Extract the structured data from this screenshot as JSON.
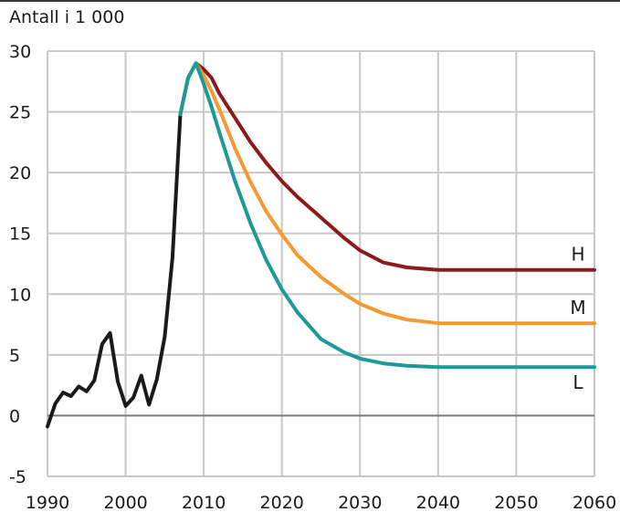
{
  "chart_data": {
    "type": "line",
    "title": "",
    "unit_label": "Antall i 1 000",
    "xlabel": "",
    "ylabel": "",
    "xlim": [
      1990,
      2060
    ],
    "ylim": [
      -5,
      30
    ],
    "x_ticks": [
      "1990",
      "2000",
      "2010",
      "2020",
      "2030",
      "2040",
      "2050",
      "2060"
    ],
    "y_ticks": [
      "30",
      "25",
      "20",
      "15",
      "10",
      "5",
      "0",
      "-5"
    ],
    "grid": true,
    "series": [
      {
        "color": "#1a1a1a",
        "points": [
          [
            1990,
            -0.9
          ],
          [
            1991,
            1.0
          ],
          [
            1992,
            1.9
          ],
          [
            1993,
            1.6
          ],
          [
            1994,
            2.4
          ],
          [
            1995,
            2.0
          ],
          [
            1996,
            2.9
          ],
          [
            1997,
            5.9
          ],
          [
            1998,
            6.8
          ],
          [
            1999,
            2.8
          ],
          [
            2000,
            0.8
          ],
          [
            2001,
            1.5
          ],
          [
            2002,
            3.3
          ],
          [
            2003,
            0.9
          ],
          [
            2004,
            3.0
          ],
          [
            2005,
            6.5
          ],
          [
            2006,
            13.0
          ],
          [
            2007,
            24.8
          ]
        ]
      },
      {
        "name": "H",
        "color": "#8b1a1a",
        "points": [
          [
            2007,
            24.8
          ],
          [
            2008,
            27.8
          ],
          [
            2009,
            29.0
          ],
          [
            2010,
            28.5
          ],
          [
            2011,
            27.8
          ],
          [
            2012,
            26.5
          ],
          [
            2014,
            24.5
          ],
          [
            2016,
            22.5
          ],
          [
            2018,
            20.8
          ],
          [
            2020,
            19.3
          ],
          [
            2022,
            18.0
          ],
          [
            2025,
            16.3
          ],
          [
            2028,
            14.6
          ],
          [
            2030,
            13.6
          ],
          [
            2033,
            12.6
          ],
          [
            2036,
            12.2
          ],
          [
            2040,
            12.0
          ],
          [
            2050,
            12.0
          ],
          [
            2060,
            12.0
          ]
        ]
      },
      {
        "name": "M",
        "color": "#f59a32",
        "points": [
          [
            2007,
            24.8
          ],
          [
            2008,
            27.8
          ],
          [
            2009,
            29.0
          ],
          [
            2010,
            28.0
          ],
          [
            2011,
            26.7
          ],
          [
            2012,
            25.2
          ],
          [
            2014,
            22.0
          ],
          [
            2016,
            19.2
          ],
          [
            2018,
            16.8
          ],
          [
            2020,
            14.9
          ],
          [
            2022,
            13.2
          ],
          [
            2025,
            11.4
          ],
          [
            2028,
            10.0
          ],
          [
            2030,
            9.2
          ],
          [
            2033,
            8.4
          ],
          [
            2036,
            7.9
          ],
          [
            2040,
            7.6
          ],
          [
            2050,
            7.6
          ],
          [
            2060,
            7.6
          ]
        ]
      },
      {
        "name": "L",
        "color": "#1b9a96",
        "points": [
          [
            2007,
            24.8
          ],
          [
            2008,
            27.8
          ],
          [
            2009,
            29.0
          ],
          [
            2010,
            27.3
          ],
          [
            2011,
            25.4
          ],
          [
            2012,
            23.3
          ],
          [
            2014,
            19.3
          ],
          [
            2016,
            15.8
          ],
          [
            2018,
            12.8
          ],
          [
            2020,
            10.4
          ],
          [
            2022,
            8.5
          ],
          [
            2025,
            6.3
          ],
          [
            2028,
            5.2
          ],
          [
            2030,
            4.7
          ],
          [
            2033,
            4.3
          ],
          [
            2036,
            4.1
          ],
          [
            2040,
            4.0
          ],
          [
            2050,
            4.0
          ],
          [
            2060,
            4.0
          ]
        ]
      }
    ]
  },
  "colors": {
    "grid": "#c8c8c8",
    "zero_line": "#7a7a7a",
    "text": "#1a1a1a"
  }
}
